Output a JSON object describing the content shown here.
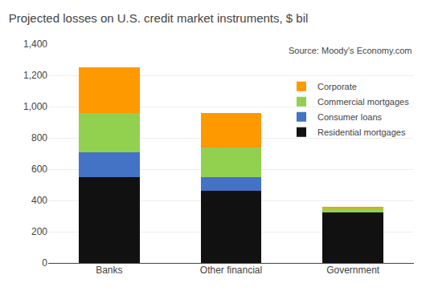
{
  "chart_data": {
    "type": "bar",
    "stacked": true,
    "title": "Projected losses on U.S. credit market instruments, $ bil",
    "categories": [
      "Banks",
      "Other financial",
      "Government"
    ],
    "series": [
      {
        "name": "Residential mortgages",
        "color": "#111111",
        "values": [
          550,
          460,
          325
        ]
      },
      {
        "name": "Consumer loans",
        "color": "#4472C4",
        "values": [
          160,
          90,
          0
        ]
      },
      {
        "name": "Commercial mortgages",
        "color": "#92D050",
        "values": [
          250,
          190,
          25
        ]
      },
      {
        "name": "Corporate",
        "color": "#FF9900",
        "values": [
          290,
          220,
          5
        ]
      }
    ],
    "ylim": [
      0,
      1400
    ],
    "yticks": [
      0,
      200,
      400,
      600,
      800,
      {
        "value": 1000,
        "label": "1,000"
      },
      {
        "value": 1200,
        "label": "1,200"
      },
      {
        "value": 1400,
        "label": "1,400"
      }
    ],
    "grid": true,
    "legend": "upper right",
    "annotations": [
      "Source: Moody's Economy.com"
    ]
  }
}
